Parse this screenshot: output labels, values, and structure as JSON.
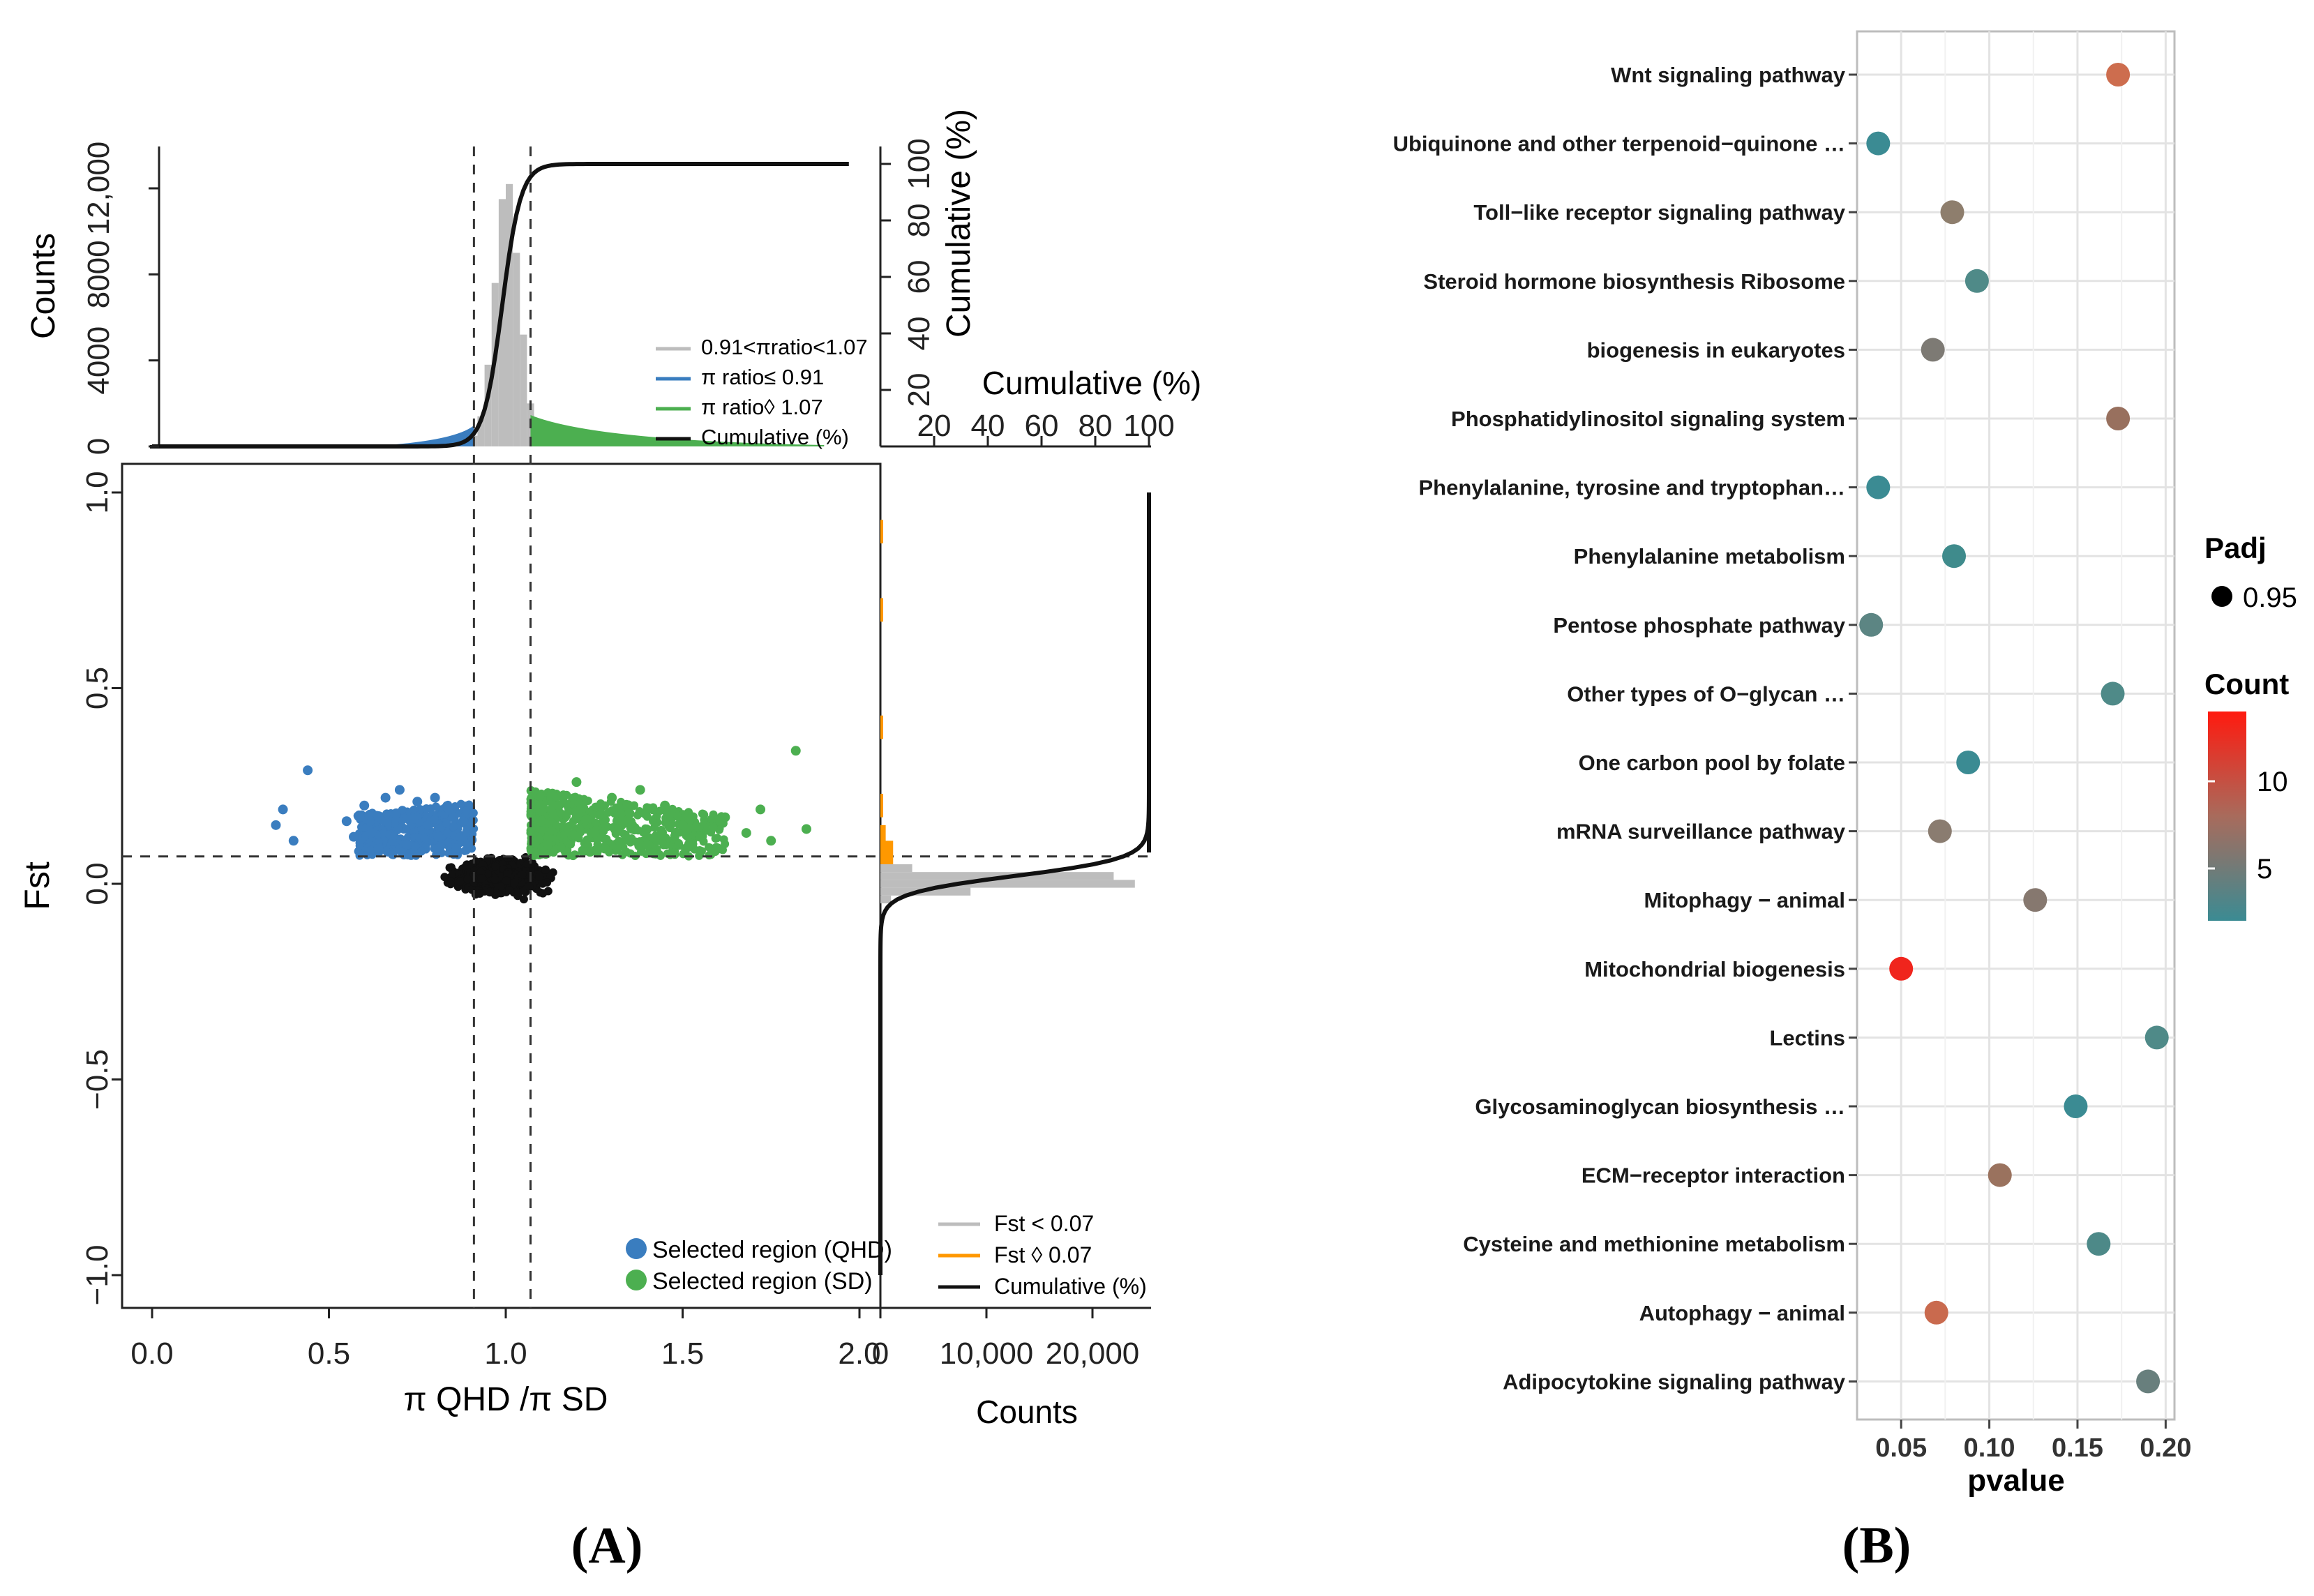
{
  "chart_data": [
    {
      "type": "scatter",
      "panel_label": "(A)",
      "xlabel": "π QHD /π SD",
      "ylabel": "Fst",
      "xlim": [
        0,
        2
      ],
      "ylim": [
        -1,
        1
      ],
      "x_ticks": [
        "0.0",
        "0.5",
        "1.0",
        "1.5",
        "2.0"
      ],
      "y_ticks": [
        "−1.0",
        "−0.5",
        "0.0",
        "0.5",
        "1.0"
      ],
      "thresholds": {
        "pi_low": 0.91,
        "pi_high": 1.07,
        "fst": 0.07
      },
      "series": [
        {
          "name": "Selected region (QHD)",
          "color": "#3a7dbf",
          "points": [
            [
              0.44,
              0.29
            ],
            [
              0.37,
              0.19
            ],
            [
              0.35,
              0.15
            ],
            [
              0.4,
              0.11
            ],
            [
              0.55,
              0.16
            ],
            [
              0.6,
              0.2
            ],
            [
              0.62,
              0.13
            ],
            [
              0.66,
              0.22
            ],
            [
              0.69,
              0.18
            ],
            [
              0.72,
              0.1
            ],
            [
              0.75,
              0.21
            ],
            [
              0.78,
              0.15
            ],
            [
              0.81,
              0.12
            ],
            [
              0.84,
              0.19
            ],
            [
              0.86,
              0.09
            ],
            [
              0.88,
              0.16
            ],
            [
              0.64,
              0.09
            ],
            [
              0.7,
              0.24
            ],
            [
              0.8,
              0.22
            ],
            [
              0.57,
              0.12
            ]
          ]
        },
        {
          "name": "Selected region (SD)",
          "color": "#4caf50",
          "points": [
            [
              1.82,
              0.34
            ],
            [
              1.85,
              0.14
            ],
            [
              1.72,
              0.19
            ],
            [
              1.62,
              0.17
            ],
            [
              1.55,
              0.12
            ],
            [
              1.5,
              0.15
            ],
            [
              1.45,
              0.2
            ],
            [
              1.4,
              0.1
            ],
            [
              1.35,
              0.18
            ],
            [
              1.3,
              0.22
            ],
            [
              1.25,
              0.13
            ],
            [
              1.2,
              0.26
            ],
            [
              1.15,
              0.2
            ],
            [
              1.12,
              0.1
            ],
            [
              1.1,
              0.16
            ],
            [
              1.6,
              0.09
            ],
            [
              1.75,
              0.11
            ],
            [
              1.68,
              0.13
            ],
            [
              1.28,
              0.09
            ],
            [
              1.38,
              0.24
            ]
          ]
        }
      ],
      "top_histogram": {
        "ylabel": "Counts",
        "y_ticks": [
          "0",
          "4000",
          "8000",
          "12,000"
        ],
        "right_label": "Cumulative (%)",
        "right_ticks": [
          "20",
          "40",
          "60",
          "80",
          "100"
        ],
        "legend": [
          {
            "label": "0.91<πratio<1.07",
            "color": "#bdbdbd"
          },
          {
            "label": "π ratio≤ 0.91",
            "color": "#3a7dbf"
          },
          {
            "label": "π ratio◊ 1.07",
            "color": "#4caf50"
          },
          {
            "label": "Cumulative (%)",
            "color": "#111111"
          }
        ]
      },
      "side_histogram": {
        "xlabel": "Counts",
        "x_ticks": [
          "0",
          "10,000",
          "20,000"
        ],
        "top_label": "Cumulative (%)",
        "top_ticks": [
          "20",
          "40",
          "60",
          "80",
          "100"
        ],
        "legend": [
          {
            "label": "Fst    <    0.07",
            "color": "#bdbdbd"
          },
          {
            "label": "Fst    ◊    0.07",
            "color": "#ff9800"
          },
          {
            "label": "Cumulative (%)",
            "color": "#111111"
          }
        ]
      }
    },
    {
      "type": "scatter",
      "panel_label": "(B)",
      "xlabel": "pvalue",
      "x_ticks": [
        "0.05",
        "0.10",
        "0.15",
        "0.20"
      ],
      "xlim": [
        0.025,
        0.205
      ],
      "categories": [
        "Wnt signaling pathway",
        "Ubiquinone and other terpenoid−quinone …",
        "Toll−like receptor signaling pathway",
        "Steroid hormone biosynthesis Ribosome",
        "biogenesis in eukaryotes",
        "Phosphatidylinositol signaling system",
        "Phenylalanine, tyrosine and tryptophan…",
        "Phenylalanine metabolism",
        "Pentose phosphate pathway",
        "Other types of O−glycan …",
        "One carbon pool by folate",
        "mRNA surveillance pathway",
        "Mitophagy − animal",
        "Mitochondrial biogenesis",
        "Lectins",
        "Glycosaminoglycan biosynthesis …",
        "ECM−receptor interaction",
        "Cysteine and methionine metabolism",
        "Autophagy − animal",
        "Adipocytokine signaling pathway"
      ],
      "pvalue": [
        0.173,
        0.037,
        0.079,
        0.093,
        0.068,
        0.173,
        0.037,
        0.08,
        0.033,
        0.17,
        0.088,
        0.072,
        0.126,
        0.05,
        0.195,
        0.149,
        0.106,
        0.162,
        0.07,
        0.19
      ],
      "count": [
        11,
        3,
        7,
        4,
        6,
        7,
        3,
        3,
        5,
        4,
        3,
        6,
        6,
        15,
        4,
        2,
        8,
        3,
        10,
        5
      ],
      "colors": [
        "#cd6d4e",
        "#3b8b93",
        "#8e7e6d",
        "#4f8a88",
        "#7d7a74",
        "#98705e",
        "#3b8b93",
        "#3f8b8c",
        "#5c8583",
        "#4f8a88",
        "#3b8b93",
        "#8a7c70",
        "#86786f",
        "#f0251d",
        "#4f8a88",
        "#3b8b93",
        "#9a725e",
        "#4d8988",
        "#c96a4e",
        "#687f7d"
      ],
      "legend": {
        "size_title": "Padj",
        "size_value": "0.95",
        "color_title": "Count",
        "color_ticks": [
          "10",
          "5"
        ]
      }
    }
  ]
}
